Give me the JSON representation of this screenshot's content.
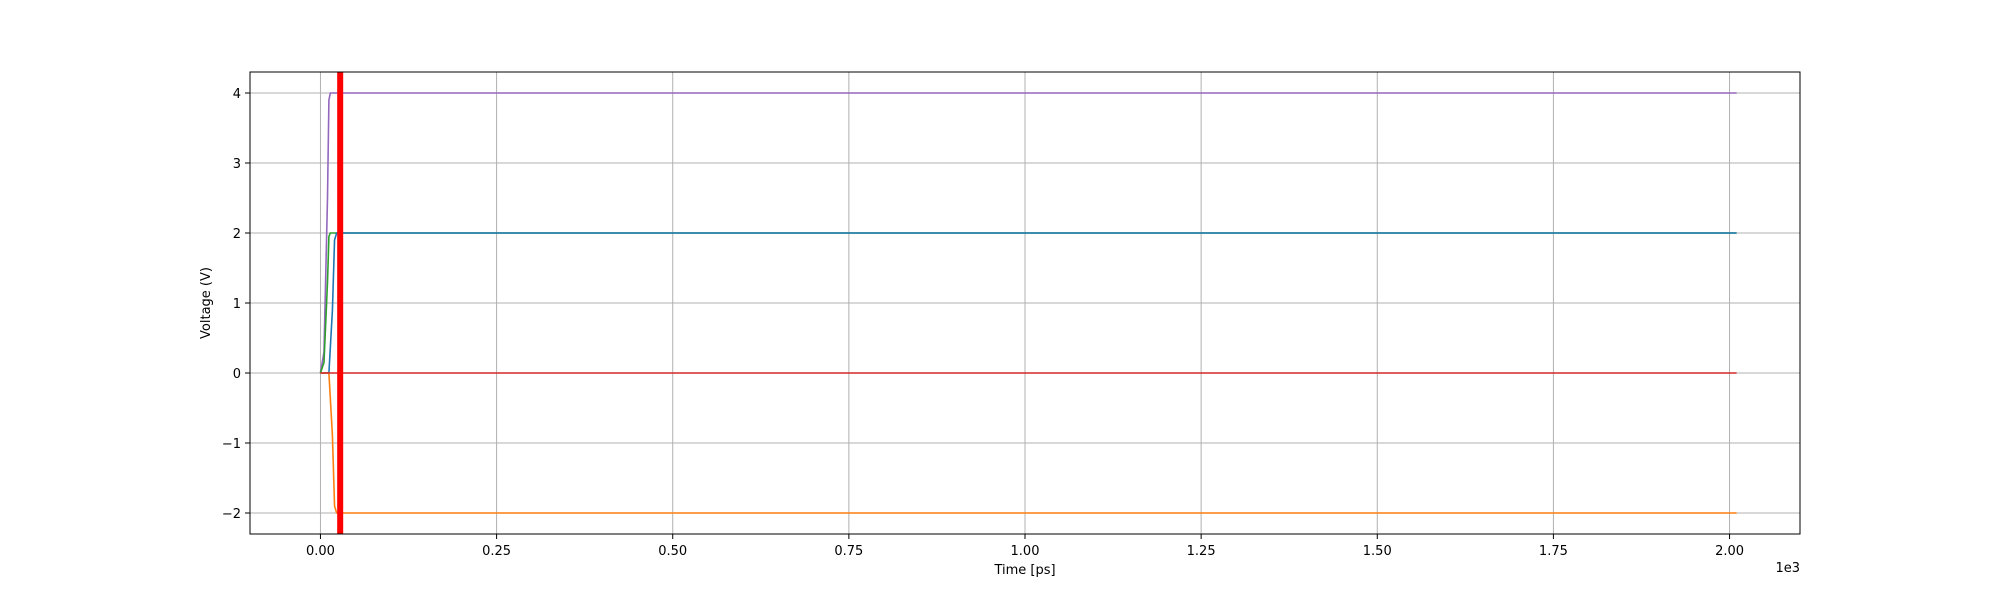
{
  "chart_data": {
    "type": "line",
    "title": "",
    "xlabel": "Time [ps]",
    "ylabel": "Voltage (V)",
    "x_offset_label": "1e3",
    "xlim": [
      -100,
      2100
    ],
    "ylim": [
      -2.3,
      4.3
    ],
    "grid": true,
    "x_ticks": [
      0,
      250,
      500,
      750,
      1000,
      1250,
      1500,
      1750,
      2000
    ],
    "x_tick_labels": [
      "0.00",
      "0.25",
      "0.50",
      "0.75",
      "1.00",
      "1.25",
      "1.50",
      "1.75",
      "2.00"
    ],
    "y_ticks": [
      -2,
      -1,
      0,
      1,
      2,
      3,
      4
    ],
    "y_tick_labels": [
      "−2",
      "−1",
      "0",
      "1",
      "2",
      "3",
      "4"
    ],
    "series": [
      {
        "color": "#9467bd",
        "x": [
          0,
          5,
          10,
          12,
          14,
          2010
        ],
        "y": [
          0,
          0.3,
          2.5,
          3.9,
          4,
          4
        ]
      },
      {
        "color": "#2ca02c",
        "x": [
          0,
          5,
          10,
          12,
          14,
          2010
        ],
        "y": [
          0,
          0.15,
          1.3,
          1.95,
          2,
          2
        ]
      },
      {
        "color": "#1f77b4",
        "x": [
          0,
          12,
          17,
          20,
          23,
          2010
        ],
        "y": [
          0,
          0,
          0.9,
          1.9,
          2,
          2
        ]
      },
      {
        "color": "#ff7f0e",
        "x": [
          0,
          12,
          17,
          20,
          23,
          2010
        ],
        "y": [
          0,
          0,
          -0.9,
          -1.9,
          -2,
          -2
        ]
      },
      {
        "color": "#d62728",
        "x": [
          0,
          2010
        ],
        "y": [
          0,
          0
        ]
      }
    ],
    "marker_line": {
      "x": 28,
      "color": "#ff0000"
    }
  }
}
